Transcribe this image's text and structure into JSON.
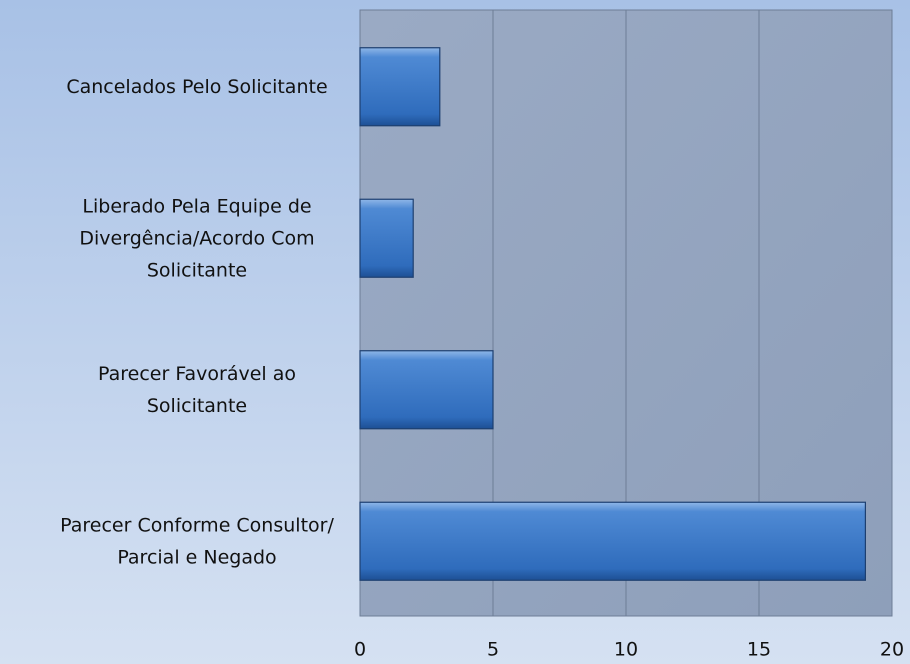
{
  "chart_data": {
    "type": "bar",
    "orientation": "horizontal",
    "categories": [
      "Cancelados Pelo Solicitante",
      "Liberado Pela Equipe de Divergência/Acordo Com Solicitante",
      "Parecer Favorável ao Solicitante",
      "Parecer Conforme Consultor/ Parcial e Negado"
    ],
    "values": [
      3,
      2,
      5,
      19
    ],
    "color": "#3a78c4",
    "xlim": [
      0,
      20
    ],
    "xticks": [
      0,
      5,
      10,
      15,
      20
    ],
    "grid": true
  }
}
